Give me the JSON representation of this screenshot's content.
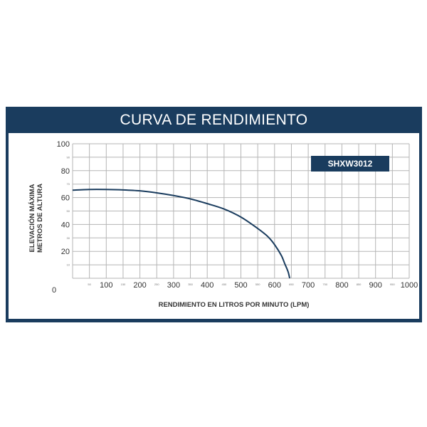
{
  "chart_data": {
    "type": "line",
    "title": "CURVA DE RENDIMIENTO",
    "xlabel": "RENDIMIENTO EN LITROS POR MINUTO (LPM)",
    "ylabel": [
      "ELEVACIÓN MÁXIMA",
      "METROS DE ALTURA"
    ],
    "xlim": [
      0,
      1000
    ],
    "ylim": [
      0,
      100
    ],
    "grid": true,
    "x_ticks": [
      "100",
      "200",
      "300",
      "400",
      "500",
      "600",
      "700",
      "800",
      "900",
      "1000"
    ],
    "x_minor_ticks": [
      "50",
      "150",
      "250",
      "350",
      "450",
      "550",
      "650",
      "750",
      "850",
      "950"
    ],
    "y_ticks": [
      "20",
      "40",
      "60",
      "80",
      "100"
    ],
    "y_minor_ticks": [
      "10",
      "30",
      "50",
      "70",
      "90"
    ],
    "origin_label": "0",
    "series": [
      {
        "name": "SHXW3012",
        "color": "#1a3c5e",
        "x": [
          0,
          50,
          100,
          150,
          200,
          250,
          300,
          350,
          400,
          450,
          500,
          550,
          580,
          600,
          620,
          630,
          640,
          645
        ],
        "y": [
          65.5,
          66,
          66,
          65.7,
          65,
          63.5,
          61.5,
          59,
          55.5,
          51.5,
          45.5,
          37,
          31,
          25,
          17,
          11,
          5,
          0
        ]
      }
    ]
  },
  "colors": {
    "frame": "#1a3c5e",
    "grid": "#b5b5b5",
    "background": "#ffffff"
  }
}
